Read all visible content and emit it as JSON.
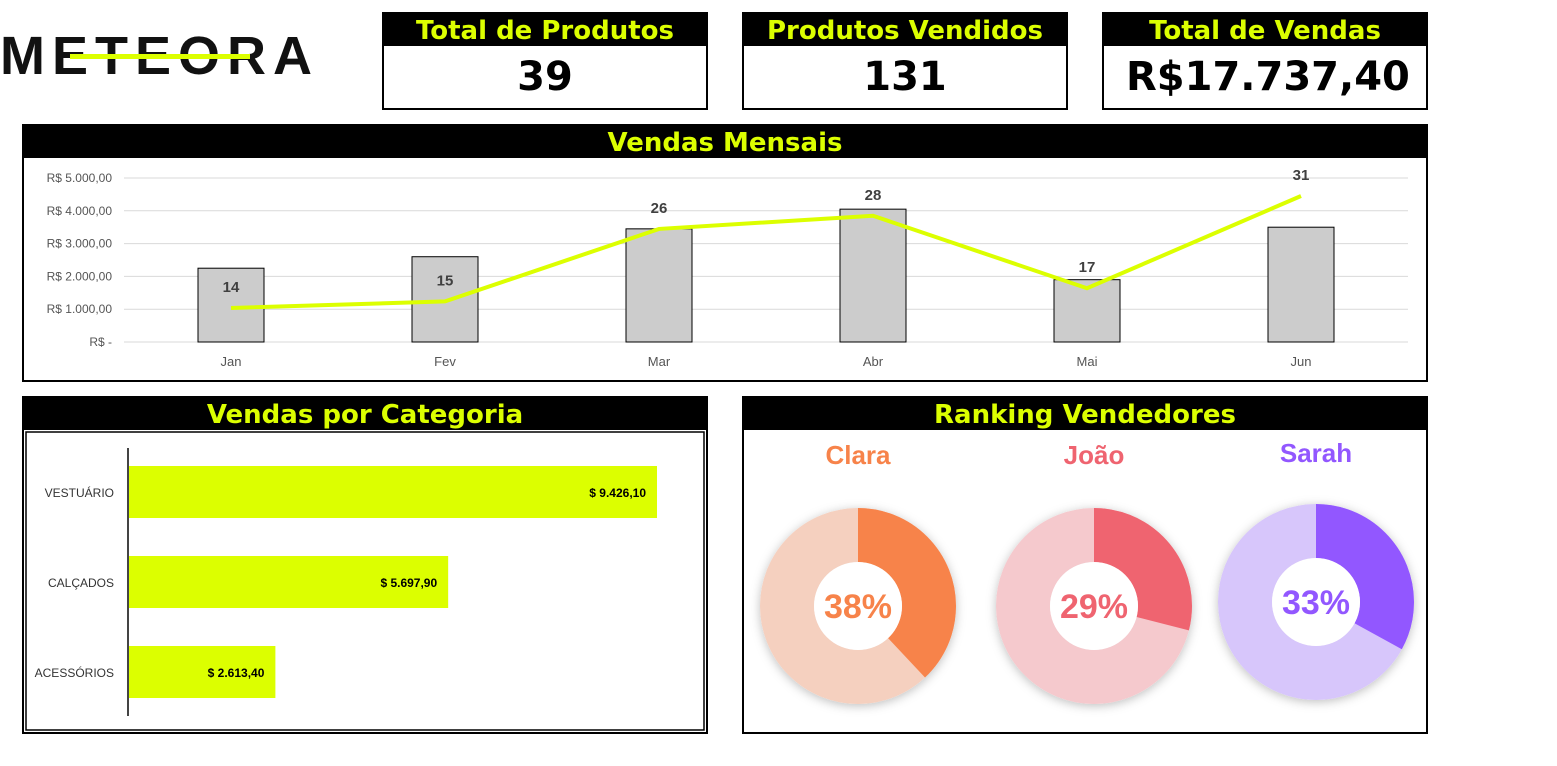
{
  "logo": {
    "text": "METEORA",
    "colors": [
      "#111111",
      "#dcff00"
    ]
  },
  "kpis": [
    {
      "label": "Total de Produtos",
      "value": "39"
    },
    {
      "label": "Produtos Vendidos",
      "value": "131"
    },
    {
      "label": "Total de Vendas",
      "currency": "R$",
      "value": "17.737,40"
    }
  ],
  "theme": {
    "accent": "#dcff00",
    "bar_gray": "#cccccc",
    "header_bg": "#000000"
  },
  "monthly_panel": {
    "title": "Vendas Mensais"
  },
  "category_panel": {
    "title": "Vendas por Categoria"
  },
  "ranking_panel": {
    "title": "Ranking Vendedores"
  },
  "chart_data": [
    {
      "type": "bar",
      "title": "Vendas Mensais",
      "categories": [
        "Jan",
        "Fev",
        "Mar",
        "Abr",
        "Mai",
        "Jun"
      ],
      "series": [
        {
          "type": "bar",
          "values": [
            2250,
            2600,
            3450,
            4050,
            1900,
            3500
          ],
          "color": "#cccccc"
        },
        {
          "type": "line",
          "values": [
            14,
            15,
            26,
            28,
            17,
            31
          ],
          "color": "#dcff00",
          "data_labels": [
            "14",
            "15",
            "26",
            "28",
            "17",
            "31"
          ]
        }
      ],
      "y_ticks": [
        "R$ 5.000,00",
        "R$ 4.000,00",
        "R$ 3.000,00",
        "R$ 2.000,00",
        "R$ 1.000,00",
        "R$ -"
      ],
      "ylim": [
        0,
        5000
      ],
      "grid": true
    },
    {
      "type": "bar",
      "orientation": "horizontal",
      "title": "Vendas por Categoria",
      "categories": [
        "VESTUÁRIO",
        "CALÇADOS",
        "ACESSÓRIOS"
      ],
      "values": [
        9426.1,
        5697.9,
        2613.4
      ],
      "labels": [
        "$ 9.426,10",
        "$ 5.697,90",
        "$ 2.613,40"
      ],
      "color": "#dcff00"
    },
    {
      "type": "pie",
      "title": "Ranking Vendedores",
      "donuts": [
        {
          "name": "Clara",
          "percent": 38,
          "label": "38%",
          "color": "#f7834a",
          "track": "#f5d0bf"
        },
        {
          "name": "João",
          "percent": 29,
          "label": "29%",
          "color": "#ef6470",
          "track": "#f5c9cd"
        },
        {
          "name": "Sarah",
          "percent": 33,
          "label": "33%",
          "color": "#9257ff",
          "track": "#d7c6fb"
        }
      ]
    }
  ]
}
